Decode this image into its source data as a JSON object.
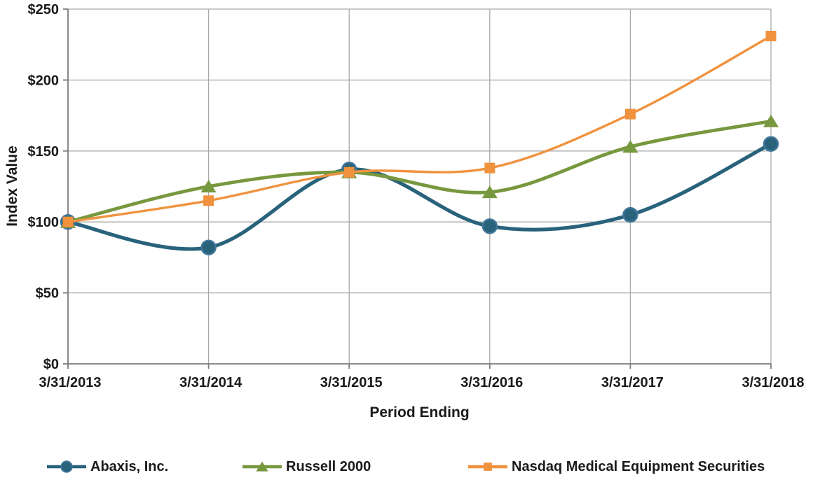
{
  "chart_data": {
    "type": "line",
    "title": "",
    "xlabel": "Period Ending",
    "ylabel": "Index Value",
    "categories": [
      "3/31/2013",
      "3/31/2014",
      "3/31/2015",
      "3/31/2016",
      "3/31/2017",
      "3/31/2018"
    ],
    "ylim": [
      0,
      250
    ],
    "ytick_step": 50,
    "ytick_labels": [
      "$0",
      "$50",
      "$100",
      "$150",
      "$200",
      "$250"
    ],
    "grid": true,
    "line_style": "smooth",
    "legend_position": "bottom",
    "series": [
      {
        "name": "Abaxis, Inc.",
        "marker": "circle",
        "color": "#28627B",
        "marker_edge": "#41769B",
        "values": [
          100,
          82,
          137,
          97,
          105,
          155
        ]
      },
      {
        "name": "Russell 2000",
        "marker": "triangle",
        "color": "#77983E",
        "values": [
          100,
          125,
          135,
          121,
          153,
          171
        ]
      },
      {
        "name": "Nasdaq Medical Equipment Securities",
        "marker": "square",
        "color": "#F0923E",
        "values": [
          100,
          115,
          135,
          138,
          176,
          231
        ]
      }
    ]
  },
  "colors": {
    "background": "#FFFFFF",
    "grid": "#A9A9A9",
    "axis": "#7B7B7B",
    "text": "#1A1A1A"
  }
}
